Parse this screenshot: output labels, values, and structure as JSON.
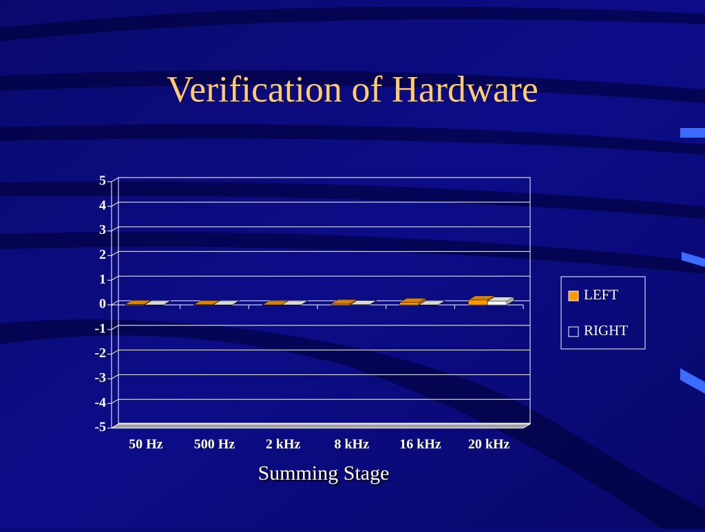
{
  "chart_data": {
    "type": "bar",
    "title": "Verification of Hardware",
    "x_label": "Summing Stage",
    "categories": [
      "50 Hz",
      "500 Hz",
      "2 kHz",
      "8 kHz",
      "16 kHz",
      "20 kHz"
    ],
    "series": [
      {
        "name": "LEFT",
        "color": "#ff9900",
        "values": [
          0.02,
          0.01,
          0,
          0.05,
          0.1,
          0.2
        ]
      },
      {
        "name": "RIGHT",
        "color": "#ffffff",
        "values": [
          0,
          0,
          0,
          0.01,
          0,
          0.15
        ]
      }
    ],
    "ylim": [
      -5,
      5
    ],
    "yticks": [
      -5,
      -4,
      -3,
      -2,
      -1,
      0,
      1,
      2,
      3,
      4,
      5
    ],
    "grid": true,
    "legend": "right"
  }
}
